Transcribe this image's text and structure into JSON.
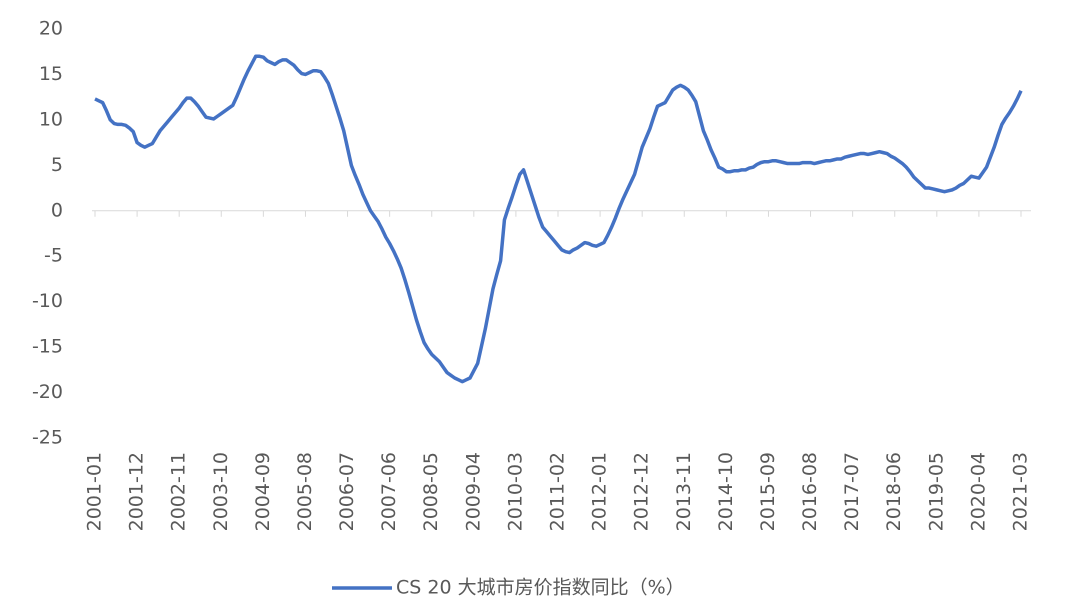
{
  "chart_data": {
    "type": "line",
    "categories": [
      "2001-01",
      null,
      null,
      null,
      null,
      null,
      null,
      null,
      null,
      null,
      null,
      "2001-12",
      null,
      null,
      null,
      null,
      null,
      null,
      null,
      null,
      null,
      null,
      "2002-11",
      null,
      null,
      null,
      null,
      null,
      null,
      null,
      null,
      null,
      null,
      "2003-10",
      null,
      null,
      null,
      null,
      null,
      null,
      null,
      null,
      null,
      null,
      "2004-09",
      null,
      null,
      null,
      null,
      null,
      null,
      null,
      null,
      null,
      null,
      "2005-08",
      null,
      null,
      null,
      null,
      null,
      null,
      null,
      null,
      null,
      null,
      "2006-07",
      null,
      null,
      null,
      null,
      null,
      null,
      null,
      null,
      null,
      null,
      "2007-06",
      null,
      null,
      null,
      null,
      null,
      null,
      null,
      null,
      null,
      null,
      "2008-05",
      null,
      null,
      null,
      null,
      null,
      null,
      null,
      null,
      null,
      null,
      "2009-04",
      null,
      null,
      null,
      null,
      null,
      null,
      null,
      null,
      null,
      null,
      "2010-03",
      null,
      null,
      null,
      null,
      null,
      null,
      null,
      null,
      null,
      null,
      "2011-02",
      null,
      null,
      null,
      null,
      null,
      null,
      null,
      null,
      null,
      null,
      "2012-01",
      null,
      null,
      null,
      null,
      null,
      null,
      null,
      null,
      null,
      null,
      "2012-12",
      null,
      null,
      null,
      null,
      null,
      null,
      null,
      null,
      null,
      null,
      "2013-11",
      null,
      null,
      null,
      null,
      null,
      null,
      null,
      null,
      null,
      null,
      "2014-10",
      null,
      null,
      null,
      null,
      null,
      null,
      null,
      null,
      null,
      null,
      "2015-09",
      null,
      null,
      null,
      null,
      null,
      null,
      null,
      null,
      null,
      null,
      "2016-08",
      null,
      null,
      null,
      null,
      null,
      null,
      null,
      null,
      null,
      null,
      "2017-07",
      null,
      null,
      null,
      null,
      null,
      null,
      null,
      null,
      null,
      null,
      "2018-06",
      null,
      null,
      null,
      null,
      null,
      null,
      null,
      null,
      null,
      null,
      "2019-05",
      null,
      null,
      null,
      null,
      null,
      null,
      null,
      null,
      null,
      null,
      "2020-04",
      null,
      null,
      null,
      null,
      null,
      null,
      null,
      null,
      null,
      null,
      "2021-03"
    ],
    "series": [
      {
        "name": "CS 20 大城市房价指数同比（%）",
        "color": "#4472c4",
        "values": [
          12.3,
          12.1,
          11.9,
          11.0,
          10.0,
          9.6,
          9.5,
          9.5,
          9.4,
          9.1,
          8.7,
          7.5,
          7.2,
          7.0,
          7.2,
          7.4,
          8.1,
          8.8,
          9.3,
          9.8,
          10.3,
          10.8,
          11.3,
          11.9,
          12.4,
          12.4,
          12.0,
          11.5,
          10.9,
          10.3,
          10.2,
          10.1,
          10.4,
          10.7,
          11.0,
          11.3,
          11.6,
          12.5,
          13.5,
          14.5,
          15.4,
          16.2,
          17.0,
          17.0,
          16.9,
          16.5,
          16.3,
          16.1,
          16.4,
          16.6,
          16.6,
          16.3,
          16.0,
          15.5,
          15.1,
          15.0,
          15.2,
          15.4,
          15.4,
          15.3,
          14.7,
          14.0,
          12.8,
          11.5,
          10.2,
          8.8,
          6.9,
          5.0,
          3.9,
          2.9,
          1.8,
          0.9,
          0,
          -0.6,
          -1.2,
          -2.0,
          -2.9,
          -3.6,
          -4.4,
          -5.3,
          -6.3,
          -7.6,
          -9.0,
          -10.5,
          -12.0,
          -13.3,
          -14.5,
          -15.2,
          -15.8,
          -16.2,
          -16.6,
          -17.2,
          -17.8,
          -18.1,
          -18.4,
          -18.6,
          -18.8,
          -18.6,
          -18.4,
          -17.6,
          -16.8,
          -14.9,
          -13.0,
          -10.8,
          -8.6,
          -7.0,
          -5.5,
          -1.0,
          0.3,
          1.5,
          2.8,
          4.0,
          4.5,
          3.2,
          1.9,
          0.6,
          -0.7,
          -1.8,
          -2.3,
          -2.8,
          -3.3,
          -3.8,
          -4.3,
          -4.5,
          -4.6,
          -4.3,
          -4.1,
          -3.8,
          -3.5,
          -3.6,
          -3.8,
          -3.9,
          -3.7,
          -3.5,
          -2.7,
          -1.8,
          -0.8,
          0.3,
          1.3,
          2.2,
          3.1,
          4.0,
          5.5,
          7.0,
          8.0,
          9.0,
          10.3,
          11.5,
          11.7,
          11.9,
          12.6,
          13.3,
          13.6,
          13.8,
          13.6,
          13.3,
          12.7,
          12.0,
          10.4,
          8.8,
          7.8,
          6.7,
          5.8,
          4.8,
          4.6,
          4.3,
          4.3,
          4.4,
          4.4,
          4.5,
          4.5,
          4.7,
          4.8,
          5.1,
          5.3,
          5.4,
          5.4,
          5.5,
          5.5,
          5.4,
          5.3,
          5.2,
          5.2,
          5.2,
          5.2,
          5.3,
          5.3,
          5.3,
          5.2,
          5.3,
          5.4,
          5.5,
          5.5,
          5.6,
          5.7,
          5.7,
          5.9,
          6.0,
          6.1,
          6.2,
          6.3,
          6.3,
          6.2,
          6.3,
          6.4,
          6.5,
          6.4,
          6.3,
          6.0,
          5.8,
          5.5,
          5.2,
          4.8,
          4.3,
          3.7,
          3.3,
          2.9,
          2.5,
          2.5,
          2.4,
          2.3,
          2.2,
          2.1,
          2.2,
          2.3,
          2.5,
          2.8,
          3.0,
          3.4,
          3.8,
          3.7,
          3.6,
          4.2,
          4.8,
          5.9,
          7.0,
          8.3,
          9.5,
          10.2,
          10.8,
          11.5,
          12.3,
          13.2
        ]
      }
    ],
    "ylim": [
      -25,
      20
    ],
    "yticks": [
      -25,
      -20,
      -15,
      -10,
      -5,
      0,
      5,
      10,
      15,
      20
    ],
    "grid": false,
    "legend": "bottom"
  }
}
